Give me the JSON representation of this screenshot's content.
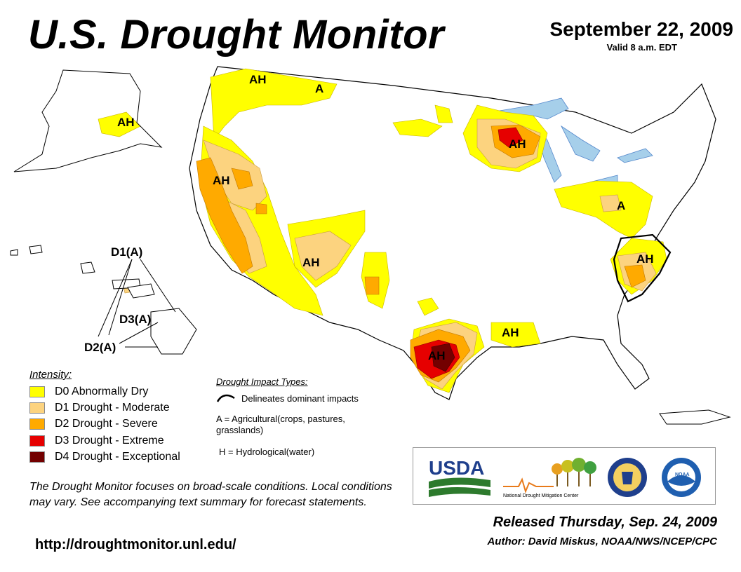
{
  "header": {
    "title": "U.S. Drought Monitor",
    "date": "September 22, 2009",
    "valid": "Valid 8 a.m. EDT"
  },
  "map": {
    "impact_labels": {
      "pacific_nw": "AH",
      "montana": "A",
      "alaska": "AH",
      "california": "AH",
      "wisconsin": "AH",
      "ohio_valley": "A",
      "four_corners": "AH",
      "carolinas": "AH",
      "louisiana": "AH",
      "texas": "AH"
    },
    "hawaii_callouts": {
      "d1": "D1(A)",
      "d3": "D3(A)",
      "d2": "D2(A)"
    },
    "colors": {
      "d0": "#FFFF00",
      "d1": "#FCD37F",
      "d2": "#FFAA00",
      "d3": "#E60000",
      "d4": "#730000",
      "water": "#A6CFEA"
    }
  },
  "legend": {
    "title": "Intensity:",
    "items": [
      {
        "code": "D0",
        "label": "D0 Abnormally Dry",
        "color": "#FFFF00"
      },
      {
        "code": "D1",
        "label": "D1 Drought - Moderate",
        "color": "#FCD37F"
      },
      {
        "code": "D2",
        "label": "D2 Drought - Severe",
        "color": "#FFAA00"
      },
      {
        "code": "D3",
        "label": "D3 Drought - Extreme",
        "color": "#E60000"
      },
      {
        "code": "D4",
        "label": "D4 Drought - Exceptional",
        "color": "#730000"
      }
    ]
  },
  "impacts": {
    "title": "Drought Impact Types:",
    "delineates": "Delineates dominant impacts",
    "agricultural": "A = Agricultural(crops, pastures,",
    "agricultural_cont": "grasslands)",
    "hydrological": "H = Hydrological(water)"
  },
  "note": "The Drought Monitor focuses on broad-scale conditions. Local conditions may vary. See accompanying text summary for forecast statements.",
  "url": "http://droughtmonitor.unl.edu/",
  "logos": {
    "usda": "USDA",
    "ndmc": "National Drought Mitigation Center",
    "doc_icon": "department-of-commerce-seal",
    "noaa": "NOAA"
  },
  "released": "Released Thursday, Sep. 24, 2009",
  "author": "Author: David Miskus, NOAA/NWS/NCEP/CPC"
}
